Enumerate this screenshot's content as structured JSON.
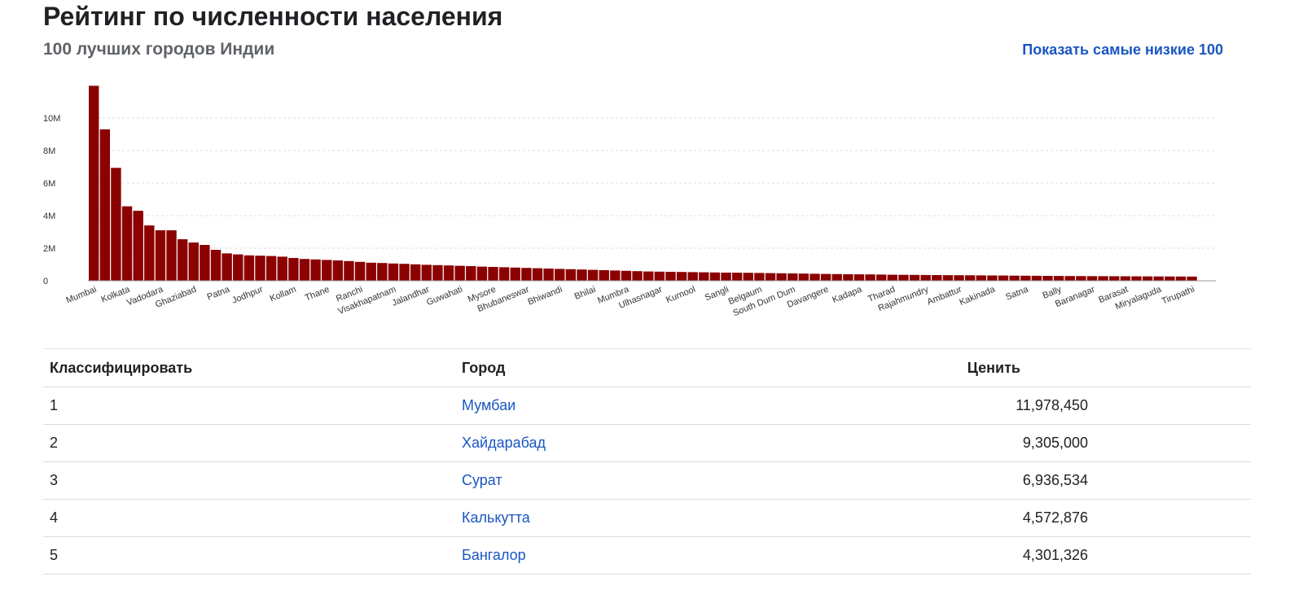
{
  "header": {
    "title": "Рейтинг по численности населения",
    "subtitle": "100 лучших городов Индии",
    "toggle_label": "Показать самые низкие 100"
  },
  "colors": {
    "bar": "#8b0000",
    "link": "#1a56c4",
    "grid": "#dddddd"
  },
  "chart_data": {
    "type": "bar",
    "title": "",
    "xlabel": "",
    "ylabel": "",
    "ylim": [
      0,
      12000000
    ],
    "y_ticks": [
      {
        "value": 0,
        "label": "0"
      },
      {
        "value": 2000000,
        "label": "2M"
      },
      {
        "value": 4000000,
        "label": "4M"
      },
      {
        "value": 6000000,
        "label": "6M"
      },
      {
        "value": 8000000,
        "label": "8M"
      },
      {
        "value": 10000000,
        "label": "10M"
      }
    ],
    "grid": true,
    "x_tick_labels": [
      {
        "index": 0,
        "label": "Mumbai"
      },
      {
        "index": 3,
        "label": "Kolkata"
      },
      {
        "index": 6,
        "label": "Vadodara"
      },
      {
        "index": 9,
        "label": "Ghaziabad"
      },
      {
        "index": 12,
        "label": "Patna"
      },
      {
        "index": 15,
        "label": "Jodhpur"
      },
      {
        "index": 18,
        "label": "Kollam"
      },
      {
        "index": 21,
        "label": "Thane"
      },
      {
        "index": 24,
        "label": "Ranchi"
      },
      {
        "index": 27,
        "label": "Visakhapatnam"
      },
      {
        "index": 30,
        "label": "Jalandhar"
      },
      {
        "index": 33,
        "label": "Guwahati"
      },
      {
        "index": 36,
        "label": "Mysore"
      },
      {
        "index": 39,
        "label": "Bhubaneswar"
      },
      {
        "index": 42,
        "label": "Bhiwandi"
      },
      {
        "index": 45,
        "label": "Bhilai"
      },
      {
        "index": 48,
        "label": "Mumbra"
      },
      {
        "index": 51,
        "label": "Ulhasnagar"
      },
      {
        "index": 54,
        "label": "Kurnool"
      },
      {
        "index": 57,
        "label": "Sangli"
      },
      {
        "index": 60,
        "label": "Belgaum"
      },
      {
        "index": 63,
        "label": "South Dum Dum"
      },
      {
        "index": 66,
        "label": "Davangere"
      },
      {
        "index": 69,
        "label": "Kadapa"
      },
      {
        "index": 72,
        "label": "Tharad"
      },
      {
        "index": 75,
        "label": "Rajahmundry"
      },
      {
        "index": 78,
        "label": "Ambattur"
      },
      {
        "index": 81,
        "label": "Kakinada"
      },
      {
        "index": 84,
        "label": "Satna"
      },
      {
        "index": 87,
        "label": "Bally"
      },
      {
        "index": 90,
        "label": "Baranagar"
      },
      {
        "index": 93,
        "label": "Barasat"
      },
      {
        "index": 96,
        "label": "Miryalaguda"
      },
      {
        "index": 99,
        "label": "Tirupathi"
      }
    ],
    "values": [
      11978450,
      9305000,
      6936534,
      4572876,
      4301326,
      3400000,
      3100000,
      3100000,
      2550000,
      2350000,
      2200000,
      1900000,
      1680000,
      1620000,
      1560000,
      1540000,
      1520000,
      1480000,
      1400000,
      1340000,
      1310000,
      1280000,
      1250000,
      1210000,
      1160000,
      1110000,
      1090000,
      1060000,
      1040000,
      1010000,
      980000,
      960000,
      940000,
      920000,
      900000,
      870000,
      850000,
      830000,
      810000,
      790000,
      770000,
      750000,
      730000,
      710000,
      690000,
      670000,
      650000,
      630000,
      610000,
      590000,
      570000,
      560000,
      550000,
      540000,
      530000,
      520000,
      510000,
      500000,
      495000,
      490000,
      480000,
      470000,
      460000,
      450000,
      440000,
      430000,
      420000,
      410000,
      400000,
      395000,
      390000,
      380000,
      370000,
      365000,
      360000,
      355000,
      350000,
      345000,
      340000,
      335000,
      330000,
      325000,
      320000,
      315000,
      310000,
      305000,
      300000,
      295000,
      290000,
      287000,
      284000,
      281000,
      278000,
      275000,
      272000,
      269000,
      266000,
      263000,
      260000,
      257000
    ]
  },
  "table": {
    "headers": {
      "rank": "Классифицировать",
      "city": "Город",
      "value": "Ценить"
    },
    "rows": [
      {
        "rank": "1",
        "city": "Мумбаи",
        "value": "11,978,450"
      },
      {
        "rank": "2",
        "city": "Хайдарабад",
        "value": "9,305,000"
      },
      {
        "rank": "3",
        "city": "Сурат",
        "value": "6,936,534"
      },
      {
        "rank": "4",
        "city": "Калькутта",
        "value": "4,572,876"
      },
      {
        "rank": "5",
        "city": "Бангалор",
        "value": "4,301,326"
      }
    ]
  }
}
